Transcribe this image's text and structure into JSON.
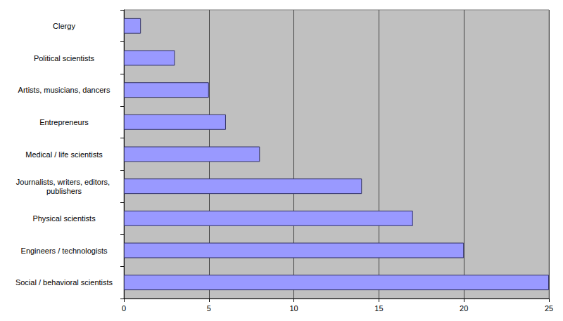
{
  "chart_data": {
    "type": "bar",
    "orientation": "horizontal",
    "categories": [
      "Social / behavioral scientists",
      "Engineers / technologists",
      "Physical scientists",
      "Journalists, writers, editors, publishers",
      "Medical / life scientists",
      "Entrepreneurs",
      "Artists, musicians, dancers",
      "Political scientists",
      "Clergy"
    ],
    "values": [
      25,
      20,
      17,
      14,
      8,
      6,
      5,
      3,
      1
    ],
    "color": "#9999ff",
    "xlim": [
      0,
      25
    ],
    "xticks": [
      0,
      5,
      10,
      15,
      20,
      25
    ],
    "grid": true
  }
}
